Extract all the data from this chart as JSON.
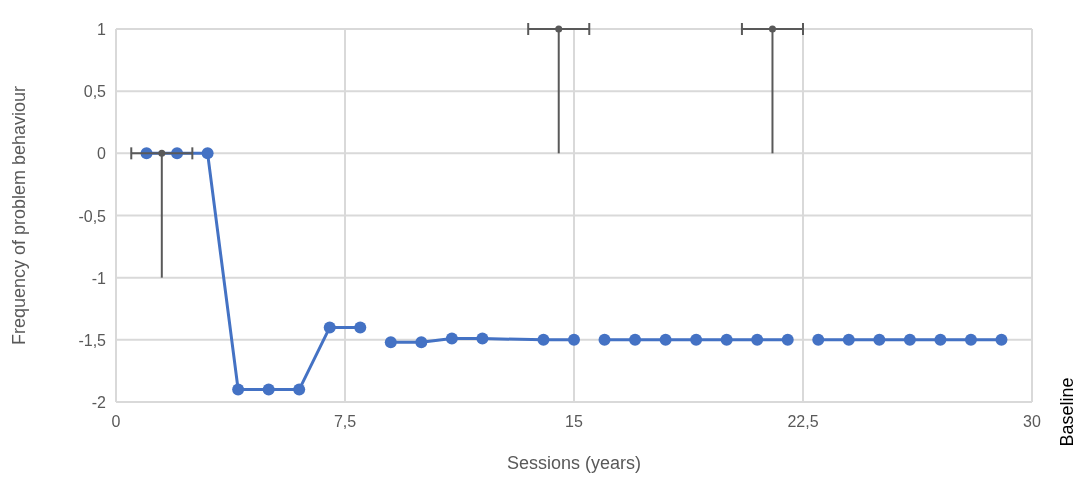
{
  "chart_data": {
    "type": "line",
    "xlabel": "Sessions (years)",
    "ylabel": "Frequency of problem behaviour",
    "annotations": [
      "Baseline"
    ],
    "xlim": [
      0,
      30
    ],
    "xticks": [
      0,
      {
        "value": 7.5,
        "label": "7,5"
      },
      15,
      {
        "value": 22.5,
        "label": "22,5"
      },
      30
    ],
    "ylim": [
      -2,
      1
    ],
    "yticks": [
      -2,
      {
        "value": -1.5,
        "label": "-1,5"
      },
      -1,
      {
        "value": -0.5,
        "label": "-0,5"
      },
      0,
      {
        "value": 0.5,
        "label": "0,5"
      },
      1
    ],
    "grid": true,
    "marker": "circle",
    "line_style": "solid",
    "series": [
      {
        "color": "#4472c4",
        "x": [
          1,
          2,
          3,
          4,
          5,
          6,
          7,
          8
        ],
        "values": [
          0,
          0,
          0,
          -1.9,
          -1.9,
          -1.9,
          -1.4,
          -1.4
        ]
      },
      {
        "color": "#4472c4",
        "x": [
          9,
          10,
          11,
          12,
          14,
          15
        ],
        "values": [
          -1.52,
          -1.52,
          -1.49,
          -1.49,
          -1.5,
          -1.5
        ]
      },
      {
        "color": "#4472c4",
        "x": [
          16,
          17,
          18,
          19,
          20,
          21,
          22
        ],
        "values": [
          -1.5,
          -1.5,
          -1.5,
          -1.5,
          -1.5,
          -1.5,
          -1.5
        ]
      },
      {
        "color": "#4472c4",
        "x": [
          23,
          24,
          25,
          26,
          27,
          28,
          29
        ],
        "values": [
          -1.5,
          -1.5,
          -1.5,
          -1.5,
          -1.5,
          -1.5,
          -1.5
        ]
      },
      {
        "type": "scatter",
        "color": "#595959",
        "x": [
          1.5,
          14.5,
          21.5
        ],
        "values": [
          0,
          1,
          1
        ],
        "errors": [
          [
            -1,
            0
          ],
          [
            0,
            1
          ],
          [
            0,
            1
          ]
        ],
        "xerrors": [
          [
            0.5,
            2.5
          ],
          [
            13.5,
            15.5
          ],
          [
            20.5,
            22.5
          ]
        ]
      }
    ]
  }
}
